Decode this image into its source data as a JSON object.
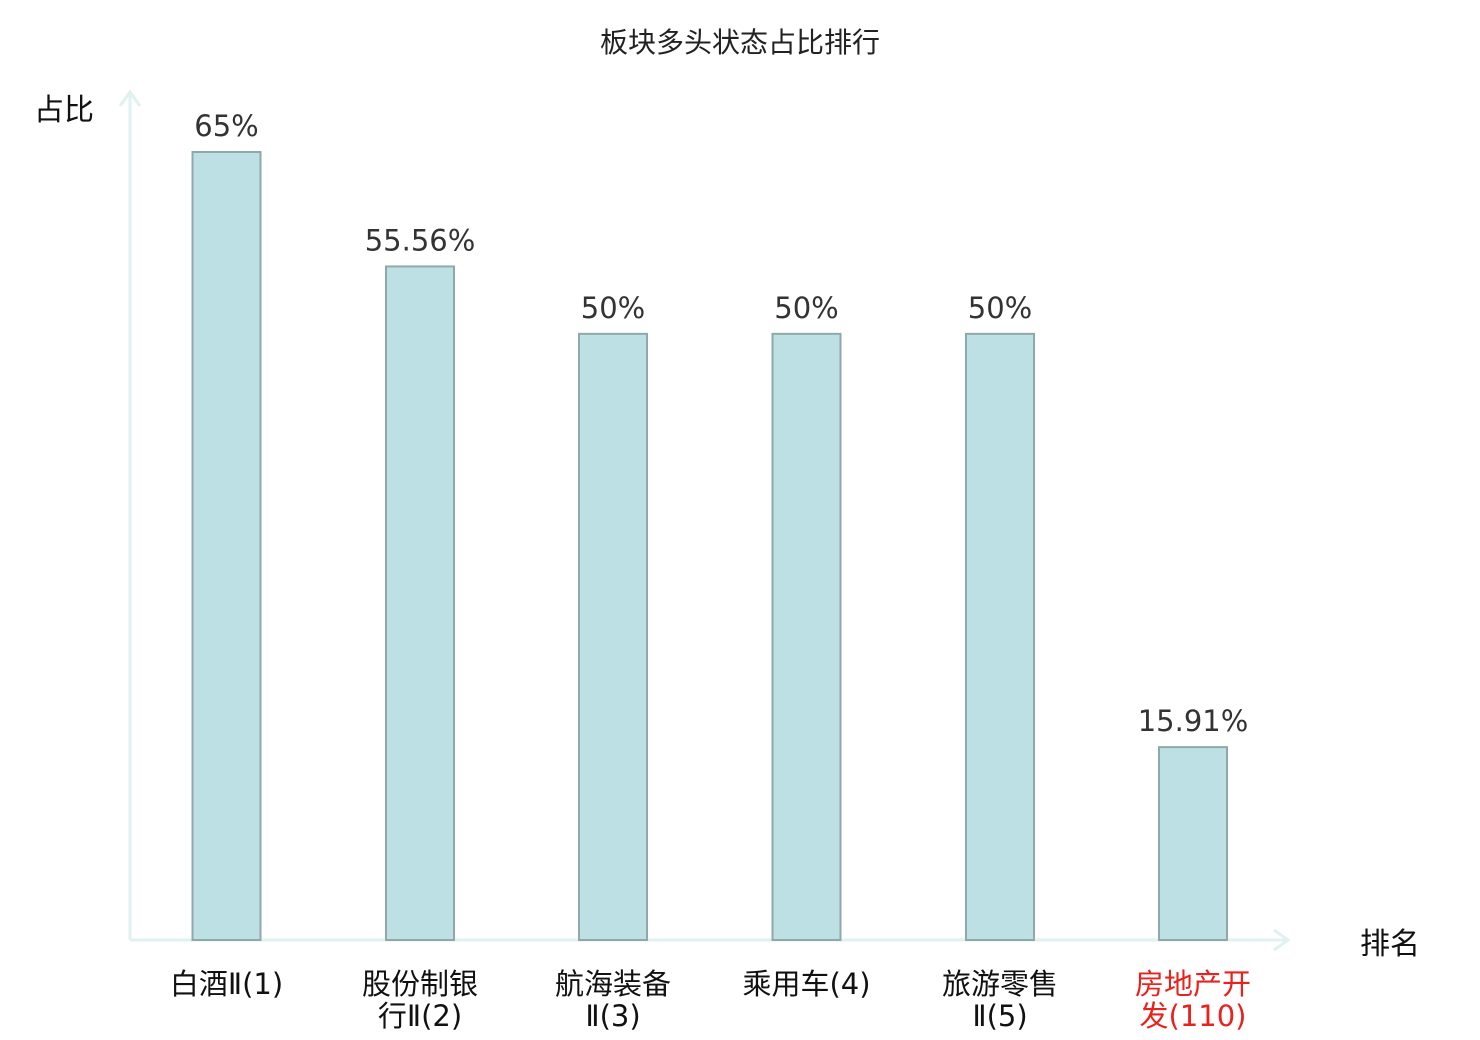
{
  "chart_data": {
    "type": "bar",
    "title": "板块多头状态占比排行",
    "ylabel": "占比",
    "xlabel": "排名",
    "ylim": [
      0,
      70
    ],
    "grid": false,
    "categories": [
      [
        "白酒Ⅱ(1)"
      ],
      [
        "股份制银",
        "行Ⅱ(2)"
      ],
      [
        "航海装备",
        "Ⅱ(3)"
      ],
      [
        "乘用车(4)"
      ],
      [
        "旅游零售",
        "Ⅱ(5)"
      ],
      [
        "房地产开",
        "发(110)"
      ]
    ],
    "values": [
      65,
      55.56,
      50,
      50,
      50,
      15.91
    ],
    "value_labels": [
      "65%",
      "55.56%",
      "50%",
      "50%",
      "50%",
      "15.91%"
    ],
    "highlight_index": 5
  },
  "colors": {
    "bar_fill": "#bce0e3",
    "bar_stroke": "#8fa9ab",
    "axis": "#dff2ef",
    "text": "#111111",
    "value_text": "#333333",
    "highlight": "#e8221c"
  }
}
